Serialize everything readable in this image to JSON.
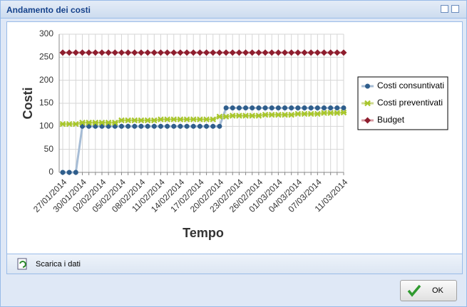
{
  "window": {
    "title": "Andamento dei costi",
    "download": "Scarica i dati",
    "ok": "OK"
  },
  "chart_data": {
    "type": "line",
    "y_label": "Costi",
    "x_label": "Tempo",
    "categories": [
      "27/01/2014",
      null,
      null,
      "30/01/2014",
      null,
      null,
      "02/02/2014",
      null,
      null,
      "05/02/2014",
      null,
      null,
      "08/02/2014",
      null,
      null,
      "11/02/2014",
      null,
      null,
      "14/02/2014",
      null,
      null,
      "17/02/2014",
      null,
      null,
      "20/02/2014",
      null,
      null,
      "23/02/2014",
      null,
      null,
      "26/02/2014",
      null,
      null,
      "01/03/2014",
      null,
      null,
      "04/03/2014",
      null,
      null,
      "07/03/2014",
      null,
      null,
      null,
      "11/03/2014"
    ],
    "series": [
      {
        "name": "Costi consuntivati",
        "color": "#2f5e8c",
        "line_color": "#a7bdd6",
        "marker": "circle",
        "values": [
          0,
          0,
          0,
          100,
          100,
          100,
          100,
          100,
          100,
          100,
          100,
          100,
          100,
          100,
          100,
          100,
          100,
          100,
          100,
          100,
          100,
          100,
          100,
          100,
          100,
          140,
          140,
          140,
          140,
          140,
          140,
          140,
          140,
          140,
          140,
          140,
          140,
          140,
          140,
          140,
          140,
          140,
          140,
          140
        ]
      },
      {
        "name": "Costi preventivati",
        "color": "#a8c62c",
        "line_color": "#cdd98f",
        "marker": "star",
        "values": [
          105,
          105,
          105,
          108,
          108,
          108,
          108,
          108,
          108,
          113,
          113,
          113,
          113,
          113,
          113,
          115,
          115,
          115,
          115,
          115,
          115,
          115,
          115,
          115,
          121,
          121,
          123,
          123,
          123,
          123,
          123,
          125,
          125,
          125,
          125,
          125,
          127,
          127,
          127,
          127,
          129,
          129,
          129,
          130
        ]
      },
      {
        "name": "Budget",
        "color": "#8e1e2e",
        "line_color": "#d79aa2",
        "marker": "diamond",
        "values": [
          260,
          260,
          260,
          260,
          260,
          260,
          260,
          260,
          260,
          260,
          260,
          260,
          260,
          260,
          260,
          260,
          260,
          260,
          260,
          260,
          260,
          260,
          260,
          260,
          260,
          260,
          260,
          260,
          260,
          260,
          260,
          260,
          260,
          260,
          260,
          260,
          260,
          260,
          260,
          260,
          260,
          260,
          260,
          260
        ]
      }
    ],
    "ylim": [
      0,
      300
    ],
    "yticks": [
      0,
      50,
      100,
      150,
      200,
      250,
      300
    ],
    "grid": true,
    "legend": "right"
  }
}
